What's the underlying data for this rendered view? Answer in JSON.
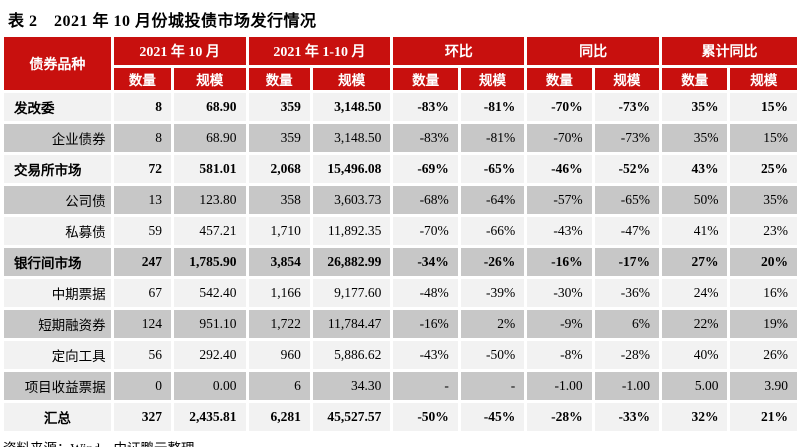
{
  "page": {
    "title": "表 2　2021 年 10 月份城投债市场发行情况",
    "source_note": "资料来源：Wind，中证鹏元整理"
  },
  "colors": {
    "header_red": "#C8100E",
    "header_text": "#FFFFFF",
    "row_light": "#F2F2F2",
    "row_dark": "#C7C7C7"
  },
  "table": {
    "corner_header": "债券品种",
    "column_groups": [
      {
        "label": "2021 年 10 月",
        "sub": [
          "数量",
          "规模"
        ]
      },
      {
        "label": "2021 年 1-10 月",
        "sub": [
          "数量",
          "规模"
        ]
      },
      {
        "label": "环比",
        "sub": [
          "数量",
          "规模"
        ]
      },
      {
        "label": "同比",
        "sub": [
          "数量",
          "规模"
        ]
      },
      {
        "label": "累计同比",
        "sub": [
          "数量",
          "规模"
        ]
      }
    ],
    "rows": [
      {
        "label": "发改委",
        "type": "group",
        "values": [
          "8",
          "68.90",
          "359",
          "3,148.50",
          "-83%",
          "-81%",
          "-70%",
          "-73%",
          "35%",
          "15%"
        ]
      },
      {
        "label": "企业债券",
        "type": "sub",
        "values": [
          "8",
          "68.90",
          "359",
          "3,148.50",
          "-83%",
          "-81%",
          "-70%",
          "-73%",
          "35%",
          "15%"
        ]
      },
      {
        "label": "交易所市场",
        "type": "group",
        "values": [
          "72",
          "581.01",
          "2,068",
          "15,496.08",
          "-69%",
          "-65%",
          "-46%",
          "-52%",
          "43%",
          "25%"
        ]
      },
      {
        "label": "公司债",
        "type": "sub",
        "values": [
          "13",
          "123.80",
          "358",
          "3,603.73",
          "-68%",
          "-64%",
          "-57%",
          "-65%",
          "50%",
          "35%"
        ]
      },
      {
        "label": "私募债",
        "type": "sub",
        "values": [
          "59",
          "457.21",
          "1,710",
          "11,892.35",
          "-70%",
          "-66%",
          "-43%",
          "-47%",
          "41%",
          "23%"
        ]
      },
      {
        "label": "银行间市场",
        "type": "group",
        "values": [
          "247",
          "1,785.90",
          "3,854",
          "26,882.99",
          "-34%",
          "-26%",
          "-16%",
          "-17%",
          "27%",
          "20%"
        ]
      },
      {
        "label": "中期票据",
        "type": "sub",
        "values": [
          "67",
          "542.40",
          "1,166",
          "9,177.60",
          "-48%",
          "-39%",
          "-30%",
          "-36%",
          "24%",
          "16%"
        ]
      },
      {
        "label": "短期融资券",
        "type": "sub",
        "values": [
          "124",
          "951.10",
          "1,722",
          "11,784.47",
          "-16%",
          "2%",
          "-9%",
          "6%",
          "22%",
          "19%"
        ]
      },
      {
        "label": "定向工具",
        "type": "sub",
        "values": [
          "56",
          "292.40",
          "960",
          "5,886.62",
          "-43%",
          "-50%",
          "-8%",
          "-28%",
          "40%",
          "26%"
        ]
      },
      {
        "label": "项目收益票据",
        "type": "sub",
        "values": [
          "0",
          "0.00",
          "6",
          "34.30",
          "-",
          "-",
          "-1.00",
          "-1.00",
          "5.00",
          "3.90"
        ]
      },
      {
        "label": "汇总",
        "type": "total",
        "values": [
          "327",
          "2,435.81",
          "6,281",
          "45,527.57",
          "-50%",
          "-45%",
          "-28%",
          "-33%",
          "32%",
          "21%"
        ]
      }
    ]
  }
}
